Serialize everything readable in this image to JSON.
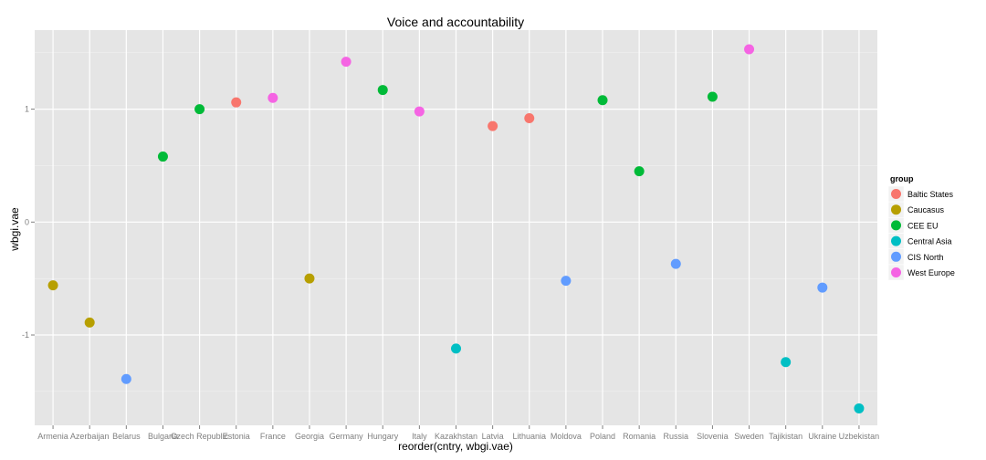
{
  "chart_data": {
    "type": "scatter",
    "title": "Voice and accountability",
    "xlabel": "reorder(cntry, wbgi.vae)",
    "ylabel": "wbgi.vae",
    "ylim": [
      -1.8,
      1.7
    ],
    "yticks": [
      -1,
      0,
      1
    ],
    "ytick_labels": [
      "-1",
      "0",
      "1"
    ],
    "grid": true,
    "legend": {
      "title": "group",
      "position": "right",
      "entries": [
        {
          "name": "Baltic States",
          "color": "#F8766D"
        },
        {
          "name": "Caucasus",
          "color": "#B79F00"
        },
        {
          "name": "CEE EU",
          "color": "#00BA38"
        },
        {
          "name": "Central Asia",
          "color": "#00BFC4"
        },
        {
          "name": "CIS North",
          "color": "#619CFF"
        },
        {
          "name": "West Europe",
          "color": "#F564E3"
        }
      ]
    },
    "categories": [
      "Armenia",
      "Azerbaijan",
      "Belarus",
      "Bulgaria",
      "Czech Republic",
      "Estonia",
      "France",
      "Georgia",
      "Germany",
      "Hungary",
      "Italy",
      "Kazakhstan",
      "Latvia",
      "Lithuania",
      "Moldova",
      "Poland",
      "Romania",
      "Russia",
      "Slovenia",
      "Sweden",
      "Tajikistan",
      "Ukraine",
      "Uzbekistan"
    ],
    "points": [
      {
        "x": "Armenia",
        "y": -0.56,
        "group": "Caucasus"
      },
      {
        "x": "Azerbaijan",
        "y": -0.89,
        "group": "Caucasus"
      },
      {
        "x": "Belarus",
        "y": -1.39,
        "group": "CIS North"
      },
      {
        "x": "Bulgaria",
        "y": 0.58,
        "group": "CEE EU"
      },
      {
        "x": "Czech Republic",
        "y": 1.0,
        "group": "CEE EU"
      },
      {
        "x": "Estonia",
        "y": 1.06,
        "group": "Baltic States"
      },
      {
        "x": "France",
        "y": 1.1,
        "group": "West Europe"
      },
      {
        "x": "Georgia",
        "y": -0.5,
        "group": "Caucasus"
      },
      {
        "x": "Germany",
        "y": 1.42,
        "group": "West Europe"
      },
      {
        "x": "Hungary",
        "y": 1.17,
        "group": "CEE EU"
      },
      {
        "x": "Italy",
        "y": 0.98,
        "group": "West Europe"
      },
      {
        "x": "Kazakhstan",
        "y": -1.12,
        "group": "Central Asia"
      },
      {
        "x": "Latvia",
        "y": 0.85,
        "group": "Baltic States"
      },
      {
        "x": "Lithuania",
        "y": 0.92,
        "group": "Baltic States"
      },
      {
        "x": "Moldova",
        "y": -0.52,
        "group": "CIS North"
      },
      {
        "x": "Poland",
        "y": 1.08,
        "group": "CEE EU"
      },
      {
        "x": "Romania",
        "y": 0.45,
        "group": "CEE EU"
      },
      {
        "x": "Russia",
        "y": -0.37,
        "group": "CIS North"
      },
      {
        "x": "Slovenia",
        "y": 1.11,
        "group": "CEE EU"
      },
      {
        "x": "Sweden",
        "y": 1.53,
        "group": "West Europe"
      },
      {
        "x": "Tajikistan",
        "y": -1.24,
        "group": "Central Asia"
      },
      {
        "x": "Ukraine",
        "y": -0.58,
        "group": "CIS North"
      },
      {
        "x": "Uzbekistan",
        "y": -1.65,
        "group": "Central Asia"
      }
    ],
    "colors": {
      "panel_background": "#E5E5E5",
      "grid_major": "#FFFFFF",
      "grid_minor": "#F2F2F2"
    }
  }
}
